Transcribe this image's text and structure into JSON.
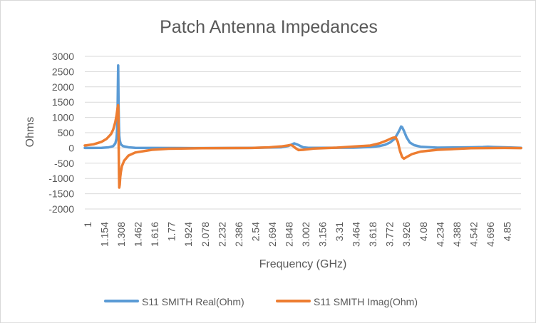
{
  "chart_data": {
    "type": "line",
    "title": "Patch Antenna Impedances",
    "xlabel": "Frequency (GHz)",
    "ylabel": "Ohms",
    "x_range": [
      1,
      5
    ],
    "ylim": [
      -2000,
      3000
    ],
    "yticks": [
      3000,
      2500,
      2000,
      1500,
      1000,
      500,
      0,
      -500,
      -1000,
      -1500,
      -2000
    ],
    "xticks": [
      "1",
      "1.154",
      "1.308",
      "1.462",
      "1.616",
      "1.77",
      "1.924",
      "2.078",
      "2.232",
      "2.386",
      "2.54",
      "2.694",
      "2.848",
      "3.002",
      "3.156",
      "3.31",
      "3.464",
      "3.618",
      "3.772",
      "3.926",
      "4.08",
      "4.234",
      "4.388",
      "4.542",
      "4.696",
      "4.85"
    ],
    "grid": "horizontal",
    "legend_position": "bottom",
    "series": [
      {
        "name": "S11 SMITH Real(Ohm)",
        "color": "#5B9BD5",
        "x": [
          1,
          1.154,
          1.22,
          1.26,
          1.28,
          1.29,
          1.295,
          1.3,
          1.303,
          1.306,
          1.308,
          1.31,
          1.313,
          1.316,
          1.32,
          1.33,
          1.35,
          1.4,
          1.462,
          1.616,
          2.0,
          2.5,
          2.8,
          2.86,
          2.89,
          2.92,
          2.95,
          2.98,
          3.002,
          3.05,
          3.156,
          3.464,
          3.618,
          3.7,
          3.75,
          3.8,
          3.84,
          3.87,
          3.89,
          3.9,
          3.91,
          3.926,
          3.95,
          3.98,
          4.02,
          4.08,
          4.234,
          4.542,
          4.65,
          4.696,
          4.75,
          4.85,
          4.95,
          5.0
        ],
        "y": [
          0,
          5,
          20,
          60,
          150,
          300,
          500,
          1100,
          2000,
          2700,
          2000,
          1300,
          700,
          400,
          250,
          120,
          60,
          20,
          5,
          0,
          -5,
          0,
          20,
          60,
          100,
          150,
          110,
          60,
          20,
          5,
          5,
          10,
          30,
          60,
          100,
          180,
          300,
          480,
          620,
          700,
          680,
          560,
          350,
          180,
          90,
          40,
          10,
          20,
          30,
          40,
          30,
          20,
          10,
          5
        ]
      },
      {
        "name": "S11 SMITH Imag(Ohm)",
        "color": "#ED7D31",
        "x": [
          1,
          1.08,
          1.154,
          1.2,
          1.24,
          1.26,
          1.28,
          1.29,
          1.3,
          1.305,
          1.308,
          1.31,
          1.313,
          1.316,
          1.32,
          1.325,
          1.33,
          1.34,
          1.36,
          1.4,
          1.462,
          1.616,
          1.77,
          2.078,
          2.54,
          2.694,
          2.8,
          2.86,
          2.89,
          2.91,
          2.93,
          2.96,
          3.002,
          3.1,
          3.31,
          3.618,
          3.7,
          3.772,
          3.82,
          3.85,
          3.87,
          3.89,
          3.91,
          3.926,
          3.95,
          4.0,
          4.08,
          4.234,
          4.542,
          4.85,
          5.0
        ],
        "y": [
          80,
          120,
          200,
          300,
          450,
          600,
          850,
          1050,
          1300,
          1400,
          1250,
          300,
          -800,
          -1300,
          -1200,
          -950,
          -800,
          -600,
          -420,
          -250,
          -150,
          -60,
          -25,
          -10,
          0,
          20,
          50,
          80,
          100,
          60,
          0,
          -70,
          -60,
          -20,
          10,
          80,
          150,
          250,
          330,
          350,
          200,
          -100,
          -300,
          -350,
          -300,
          -200,
          -120,
          -60,
          -10,
          0,
          -5
        ]
      }
    ]
  }
}
